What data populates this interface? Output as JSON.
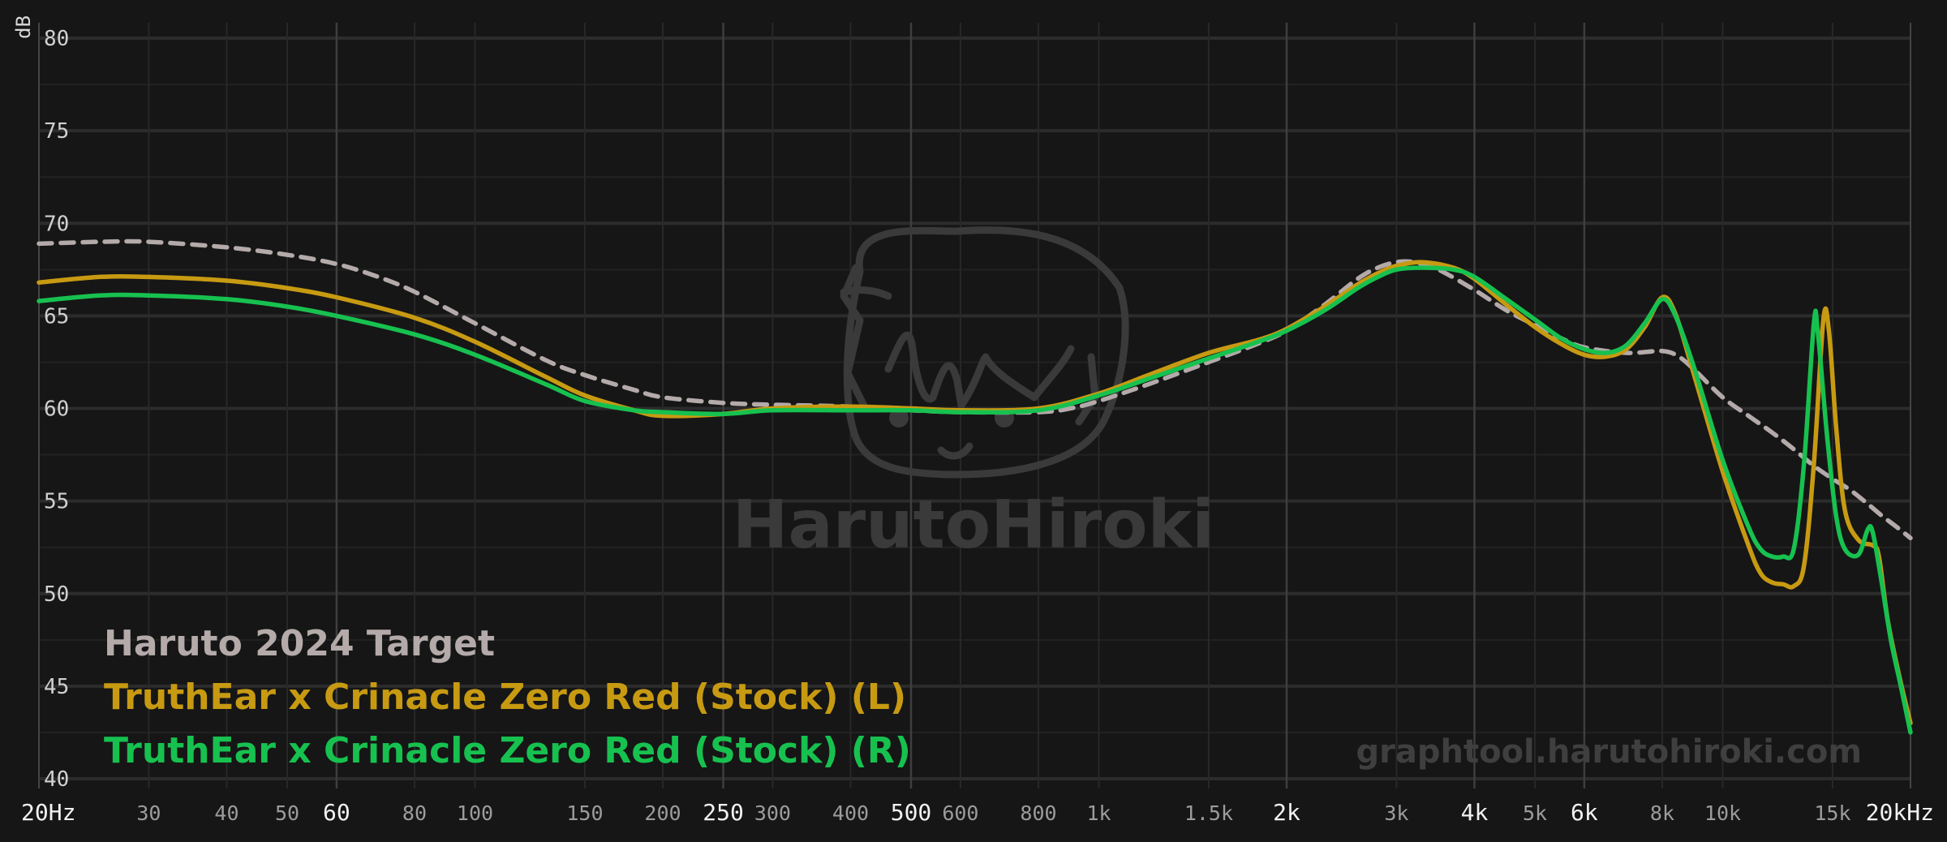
{
  "chart_data": {
    "type": "line",
    "title": "",
    "xlabel": "",
    "ylabel": "dB",
    "x_scale": "log",
    "xlim": [
      20,
      20000
    ],
    "ylim": [
      40,
      80
    ],
    "grid": true,
    "legend_placement": "bottom-left",
    "watermark": "HarutoHiroki",
    "site_label": "graphtool.harutohiroki.com",
    "colors": {
      "background": "#161616",
      "grid": "#2a2a2a",
      "target": "#b3aaa9",
      "left": "#c79a12",
      "right": "#17c14f"
    },
    "y_ticks": [
      "80",
      "75",
      "70",
      "65",
      "60",
      "55",
      "50",
      "45",
      "40"
    ],
    "x_ticks": [
      {
        "value": 20,
        "label": "20Hz",
        "major": true
      },
      {
        "value": 30,
        "label": "30",
        "major": false
      },
      {
        "value": 40,
        "label": "40",
        "major": false
      },
      {
        "value": 50,
        "label": "50",
        "major": false
      },
      {
        "value": 60,
        "label": "60",
        "major": true
      },
      {
        "value": 80,
        "label": "80",
        "major": false
      },
      {
        "value": 100,
        "label": "100",
        "major": false
      },
      {
        "value": 150,
        "label": "150",
        "major": false
      },
      {
        "value": 200,
        "label": "200",
        "major": false
      },
      {
        "value": 250,
        "label": "250",
        "major": true
      },
      {
        "value": 300,
        "label": "300",
        "major": false
      },
      {
        "value": 400,
        "label": "400",
        "major": false
      },
      {
        "value": 500,
        "label": "500",
        "major": true
      },
      {
        "value": 600,
        "label": "600",
        "major": false
      },
      {
        "value": 800,
        "label": "800",
        "major": false
      },
      {
        "value": 1000,
        "label": "1k",
        "major": false
      },
      {
        "value": 1500,
        "label": "1.5k",
        "major": false
      },
      {
        "value": 2000,
        "label": "2k",
        "major": true
      },
      {
        "value": 3000,
        "label": "3k",
        "major": false
      },
      {
        "value": 4000,
        "label": "4k",
        "major": true
      },
      {
        "value": 5000,
        "label": "5k",
        "major": false
      },
      {
        "value": 6000,
        "label": "6k",
        "major": true
      },
      {
        "value": 8000,
        "label": "8k",
        "major": false
      },
      {
        "value": 10000,
        "label": "10k",
        "major": false
      },
      {
        "value": 15000,
        "label": "15k",
        "major": false
      },
      {
        "value": 20000,
        "label": "20kHz",
        "major": true
      }
    ],
    "series": [
      {
        "name": "Haruto 2024 Target",
        "key": "target",
        "dashed": true,
        "points": [
          [
            20,
            68.9
          ],
          [
            25,
            69.0
          ],
          [
            30,
            69.0
          ],
          [
            40,
            68.7
          ],
          [
            50,
            68.3
          ],
          [
            60,
            67.8
          ],
          [
            70,
            67.1
          ],
          [
            80,
            66.3
          ],
          [
            100,
            64.6
          ],
          [
            130,
            62.6
          ],
          [
            150,
            61.8
          ],
          [
            180,
            61.0
          ],
          [
            200,
            60.6
          ],
          [
            250,
            60.3
          ],
          [
            300,
            60.2
          ],
          [
            400,
            60.1
          ],
          [
            500,
            59.9
          ],
          [
            600,
            59.8
          ],
          [
            800,
            59.8
          ],
          [
            900,
            60.0
          ],
          [
            1000,
            60.4
          ],
          [
            1200,
            61.3
          ],
          [
            1500,
            62.5
          ],
          [
            1800,
            63.5
          ],
          [
            2000,
            64.2
          ],
          [
            2300,
            65.6
          ],
          [
            2600,
            67.0
          ],
          [
            2800,
            67.6
          ],
          [
            3000,
            67.9
          ],
          [
            3200,
            67.9
          ],
          [
            3500,
            67.5
          ],
          [
            4000,
            66.4
          ],
          [
            4500,
            65.3
          ],
          [
            5000,
            64.5
          ],
          [
            5500,
            63.8
          ],
          [
            6000,
            63.3
          ],
          [
            7000,
            63.0
          ],
          [
            8000,
            63.1
          ],
          [
            8500,
            62.8
          ],
          [
            9000,
            62.1
          ],
          [
            10000,
            60.6
          ],
          [
            11000,
            59.6
          ],
          [
            12000,
            58.7
          ],
          [
            13000,
            57.8
          ],
          [
            14000,
            56.9
          ],
          [
            15000,
            56.2
          ],
          [
            16000,
            55.6
          ],
          [
            17000,
            54.9
          ],
          [
            18000,
            54.2
          ],
          [
            19000,
            53.6
          ],
          [
            20000,
            53.0
          ]
        ]
      },
      {
        "name": "TruthEar x Crinacle Zero Red (Stock) (L)",
        "key": "left",
        "dashed": false,
        "points": [
          [
            20,
            66.8
          ],
          [
            25,
            67.1
          ],
          [
            30,
            67.1
          ],
          [
            40,
            66.9
          ],
          [
            50,
            66.5
          ],
          [
            60,
            66.0
          ],
          [
            80,
            64.9
          ],
          [
            100,
            63.6
          ],
          [
            130,
            61.7
          ],
          [
            150,
            60.7
          ],
          [
            180,
            59.9
          ],
          [
            200,
            59.6
          ],
          [
            250,
            59.7
          ],
          [
            300,
            60.0
          ],
          [
            400,
            60.1
          ],
          [
            500,
            60.0
          ],
          [
            600,
            59.9
          ],
          [
            800,
            60.0
          ],
          [
            1000,
            60.8
          ],
          [
            1200,
            61.8
          ],
          [
            1500,
            63.0
          ],
          [
            1800,
            63.7
          ],
          [
            2000,
            64.3
          ],
          [
            2300,
            65.5
          ],
          [
            2600,
            66.7
          ],
          [
            2800,
            67.3
          ],
          [
            3000,
            67.7
          ],
          [
            3300,
            67.9
          ],
          [
            3700,
            67.6
          ],
          [
            4000,
            67.0
          ],
          [
            4500,
            65.6
          ],
          [
            5000,
            64.4
          ],
          [
            5500,
            63.5
          ],
          [
            6000,
            62.9
          ],
          [
            6500,
            62.8
          ],
          [
            7000,
            63.2
          ],
          [
            7500,
            64.4
          ],
          [
            8000,
            66.0
          ],
          [
            8400,
            65.1
          ],
          [
            9000,
            61.8
          ],
          [
            10000,
            56.6
          ],
          [
            11000,
            52.6
          ],
          [
            11500,
            51.1
          ],
          [
            12000,
            50.6
          ],
          [
            12500,
            50.5
          ],
          [
            13000,
            50.4
          ],
          [
            13500,
            51.5
          ],
          [
            14000,
            57.0
          ],
          [
            14500,
            64.8
          ],
          [
            14800,
            64.2
          ],
          [
            15200,
            59.0
          ],
          [
            15700,
            54.5
          ],
          [
            16500,
            52.9
          ],
          [
            17400,
            52.6
          ],
          [
            17800,
            52.0
          ],
          [
            18400,
            48.5
          ],
          [
            19200,
            45.5
          ],
          [
            20000,
            43.0
          ]
        ]
      },
      {
        "name": "TruthEar x Crinacle Zero Red (Stock) (R)",
        "key": "right",
        "dashed": false,
        "points": [
          [
            20,
            65.8
          ],
          [
            25,
            66.1
          ],
          [
            30,
            66.1
          ],
          [
            40,
            65.9
          ],
          [
            50,
            65.5
          ],
          [
            60,
            65.0
          ],
          [
            80,
            64.0
          ],
          [
            100,
            62.9
          ],
          [
            130,
            61.3
          ],
          [
            150,
            60.4
          ],
          [
            180,
            59.9
          ],
          [
            200,
            59.8
          ],
          [
            250,
            59.7
          ],
          [
            300,
            59.9
          ],
          [
            400,
            59.9
          ],
          [
            500,
            59.9
          ],
          [
            600,
            59.8
          ],
          [
            800,
            59.9
          ],
          [
            1000,
            60.7
          ],
          [
            1200,
            61.6
          ],
          [
            1500,
            62.7
          ],
          [
            1800,
            63.6
          ],
          [
            2000,
            64.2
          ],
          [
            2300,
            65.3
          ],
          [
            2600,
            66.5
          ],
          [
            2800,
            67.1
          ],
          [
            3000,
            67.5
          ],
          [
            3300,
            67.6
          ],
          [
            3700,
            67.5
          ],
          [
            4000,
            67.1
          ],
          [
            4500,
            65.9
          ],
          [
            5000,
            64.8
          ],
          [
            5500,
            63.8
          ],
          [
            6000,
            63.2
          ],
          [
            6500,
            63.0
          ],
          [
            7000,
            63.4
          ],
          [
            7500,
            64.6
          ],
          [
            8000,
            65.9
          ],
          [
            8400,
            65.0
          ],
          [
            9000,
            62.2
          ],
          [
            10000,
            57.2
          ],
          [
            11000,
            53.6
          ],
          [
            11500,
            52.4
          ],
          [
            12000,
            52.0
          ],
          [
            12500,
            52.0
          ],
          [
            13000,
            52.4
          ],
          [
            13500,
            57.0
          ],
          [
            14000,
            64.6
          ],
          [
            14200,
            64.2
          ],
          [
            14700,
            58.5
          ],
          [
            15200,
            54.2
          ],
          [
            15700,
            52.4
          ],
          [
            16500,
            52.1
          ],
          [
            17100,
            53.5
          ],
          [
            17400,
            53.3
          ],
          [
            17900,
            51.0
          ],
          [
            18600,
            47.5
          ],
          [
            19300,
            45.0
          ],
          [
            20000,
            42.5
          ]
        ]
      }
    ]
  }
}
